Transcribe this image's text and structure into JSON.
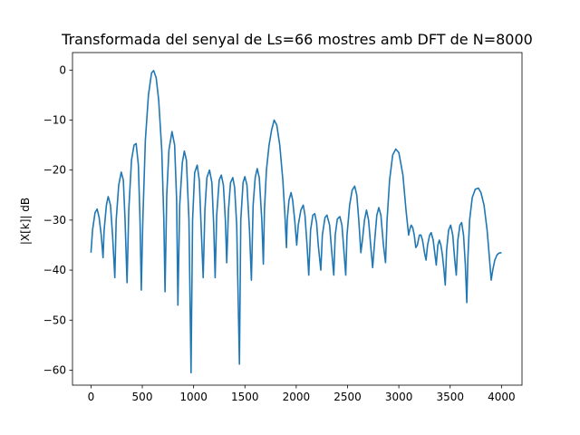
{
  "chart_data": {
    "type": "line",
    "title": "Transformada del senyal de Ls=66 mostres amb DFT de N=8000",
    "xlabel": "",
    "ylabel": "|X[k]| dB",
    "xlim": [
      -180,
      4200
    ],
    "ylim": [
      -63,
      3.5
    ],
    "xticks": [
      0,
      500,
      1000,
      1500,
      2000,
      2500,
      3000,
      3500,
      4000
    ],
    "yticks": [
      0,
      -10,
      -20,
      -30,
      -40,
      -50,
      -60
    ],
    "grid": false,
    "series": [
      {
        "color": "#1f77b4",
        "points": [
          [
            0,
            -36.5
          ],
          [
            15,
            -32
          ],
          [
            40,
            -28.5
          ],
          [
            60,
            -27.8
          ],
          [
            80,
            -29.5
          ],
          [
            100,
            -33
          ],
          [
            118,
            -37.5
          ],
          [
            128,
            -32
          ],
          [
            150,
            -27
          ],
          [
            168,
            -25.3
          ],
          [
            190,
            -27
          ],
          [
            210,
            -33
          ],
          [
            232,
            -41.5
          ],
          [
            246,
            -30
          ],
          [
            270,
            -23
          ],
          [
            295,
            -20.4
          ],
          [
            315,
            -22
          ],
          [
            332,
            -30
          ],
          [
            352,
            -42.5
          ],
          [
            368,
            -28
          ],
          [
            395,
            -18
          ],
          [
            420,
            -15
          ],
          [
            440,
            -14.7
          ],
          [
            462,
            -19
          ],
          [
            478,
            -30
          ],
          [
            490,
            -44
          ],
          [
            505,
            -30
          ],
          [
            530,
            -14
          ],
          [
            560,
            -5
          ],
          [
            590,
            -0.6
          ],
          [
            610,
            -0.1
          ],
          [
            635,
            -1.5
          ],
          [
            660,
            -6
          ],
          [
            690,
            -16
          ],
          [
            710,
            -30
          ],
          [
            722,
            -44.3
          ],
          [
            738,
            -25
          ],
          [
            760,
            -16
          ],
          [
            790,
            -12.3
          ],
          [
            815,
            -15
          ],
          [
            835,
            -26
          ],
          [
            847,
            -47
          ],
          [
            865,
            -27
          ],
          [
            890,
            -18.5
          ],
          [
            910,
            -16.2
          ],
          [
            930,
            -18
          ],
          [
            955,
            -30
          ],
          [
            975,
            -60.5
          ],
          [
            990,
            -30
          ],
          [
            1010,
            -20.5
          ],
          [
            1035,
            -19
          ],
          [
            1055,
            -22
          ],
          [
            1075,
            -32
          ],
          [
            1093,
            -41.5
          ],
          [
            1110,
            -28
          ],
          [
            1130,
            -21.5
          ],
          [
            1155,
            -20
          ],
          [
            1178,
            -22.5
          ],
          [
            1196,
            -31
          ],
          [
            1210,
            -41.5
          ],
          [
            1225,
            -29
          ],
          [
            1250,
            -22
          ],
          [
            1270,
            -21
          ],
          [
            1290,
            -23
          ],
          [
            1310,
            -30
          ],
          [
            1323,
            -38.5
          ],
          [
            1340,
            -28
          ],
          [
            1360,
            -22.5
          ],
          [
            1382,
            -21.5
          ],
          [
            1400,
            -23.5
          ],
          [
            1420,
            -31
          ],
          [
            1447,
            -58.8
          ],
          [
            1460,
            -30
          ],
          [
            1482,
            -22.5
          ],
          [
            1500,
            -21.3
          ],
          [
            1520,
            -23
          ],
          [
            1545,
            -32
          ],
          [
            1563,
            -42
          ],
          [
            1580,
            -27
          ],
          [
            1600,
            -21.5
          ],
          [
            1620,
            -19.7
          ],
          [
            1640,
            -21.5
          ],
          [
            1665,
            -30
          ],
          [
            1680,
            -38.8
          ],
          [
            1690,
            -28
          ],
          [
            1710,
            -20
          ],
          [
            1735,
            -15
          ],
          [
            1760,
            -12
          ],
          [
            1785,
            -10
          ],
          [
            1810,
            -11
          ],
          [
            1840,
            -15
          ],
          [
            1870,
            -22
          ],
          [
            1890,
            -29
          ],
          [
            1905,
            -35.5
          ],
          [
            1912,
            -30
          ],
          [
            1930,
            -26
          ],
          [
            1950,
            -24.5
          ],
          [
            1965,
            -26
          ],
          [
            1985,
            -30
          ],
          [
            2005,
            -35
          ],
          [
            2020,
            -31
          ],
          [
            2045,
            -28
          ],
          [
            2068,
            -27
          ],
          [
            2085,
            -29
          ],
          [
            2105,
            -35
          ],
          [
            2122,
            -41
          ],
          [
            2140,
            -32
          ],
          [
            2162,
            -29
          ],
          [
            2180,
            -28.7
          ],
          [
            2198,
            -30.5
          ],
          [
            2215,
            -35
          ],
          [
            2240,
            -40
          ],
          [
            2255,
            -33
          ],
          [
            2280,
            -29.5
          ],
          [
            2300,
            -29
          ],
          [
            2325,
            -31
          ],
          [
            2345,
            -36
          ],
          [
            2366,
            -41
          ],
          [
            2380,
            -33
          ],
          [
            2400,
            -29.8
          ],
          [
            2425,
            -29.3
          ],
          [
            2445,
            -31
          ],
          [
            2460,
            -35
          ],
          [
            2482,
            -41
          ],
          [
            2495,
            -33
          ],
          [
            2520,
            -27
          ],
          [
            2545,
            -24
          ],
          [
            2570,
            -23.2
          ],
          [
            2590,
            -25
          ],
          [
            2610,
            -30
          ],
          [
            2630,
            -36.5
          ],
          [
            2645,
            -34
          ],
          [
            2665,
            -30
          ],
          [
            2685,
            -28
          ],
          [
            2705,
            -30
          ],
          [
            2725,
            -35
          ],
          [
            2745,
            -39.5
          ],
          [
            2765,
            -34
          ],
          [
            2785,
            -29
          ],
          [
            2805,
            -27.5
          ],
          [
            2825,
            -29
          ],
          [
            2850,
            -35
          ],
          [
            2870,
            -38.5
          ],
          [
            2885,
            -30
          ],
          [
            2910,
            -22
          ],
          [
            2940,
            -17
          ],
          [
            2970,
            -15.8
          ],
          [
            3000,
            -16.5
          ],
          [
            3040,
            -21
          ],
          [
            3070,
            -28
          ],
          [
            3095,
            -33
          ],
          [
            3105,
            -32
          ],
          [
            3120,
            -31
          ],
          [
            3135,
            -31.5
          ],
          [
            3150,
            -33
          ],
          [
            3165,
            -35.5
          ],
          [
            3180,
            -35
          ],
          [
            3200,
            -33
          ],
          [
            3215,
            -33
          ],
          [
            3230,
            -34
          ],
          [
            3250,
            -36.5
          ],
          [
            3265,
            -38
          ],
          [
            3280,
            -35
          ],
          [
            3300,
            -33
          ],
          [
            3315,
            -32.5
          ],
          [
            3335,
            -34
          ],
          [
            3350,
            -36.5
          ],
          [
            3365,
            -39
          ],
          [
            3380,
            -35
          ],
          [
            3395,
            -34
          ],
          [
            3410,
            -35
          ],
          [
            3425,
            -37
          ],
          [
            3440,
            -40
          ],
          [
            3452,
            -43
          ],
          [
            3465,
            -36
          ],
          [
            3485,
            -32
          ],
          [
            3505,
            -31
          ],
          [
            3525,
            -33
          ],
          [
            3545,
            -38
          ],
          [
            3560,
            -41
          ],
          [
            3575,
            -34
          ],
          [
            3595,
            -31
          ],
          [
            3612,
            -30.5
          ],
          [
            3630,
            -33
          ],
          [
            3648,
            -39
          ],
          [
            3662,
            -46.5
          ],
          [
            3672,
            -38
          ],
          [
            3690,
            -30
          ],
          [
            3715,
            -25.5
          ],
          [
            3745,
            -23.8
          ],
          [
            3775,
            -23.6
          ],
          [
            3800,
            -24.5
          ],
          [
            3830,
            -27
          ],
          [
            3860,
            -32
          ],
          [
            3880,
            -37
          ],
          [
            3900,
            -42
          ],
          [
            3915,
            -40
          ],
          [
            3935,
            -38
          ],
          [
            3955,
            -37
          ],
          [
            3975,
            -36.6
          ],
          [
            4000,
            -36.5
          ]
        ]
      }
    ]
  }
}
